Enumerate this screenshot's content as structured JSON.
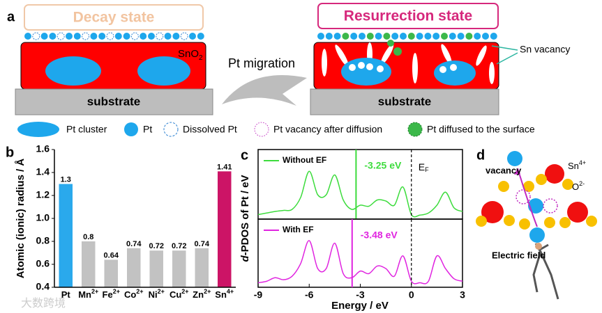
{
  "panel_a": {
    "label": "a",
    "decay_title": "Decay state",
    "resurrection_title": "Resurrection state",
    "oxide": {
      "base": "SnO",
      "sub": "2"
    },
    "substrate_left": "substrate",
    "substrate_right": "substrate",
    "arrow_label": "Pt migration",
    "vacancy_label": "Sn vacancy",
    "legend": [
      "Pt cluster",
      "Pt",
      "Dissolved Pt",
      "Pt vacancy after diffusion",
      "Pt diffused to the surface"
    ]
  },
  "chart_data": [
    {
      "type": "bar",
      "panel_label": "b",
      "ylabel": "Atomic (ionic) radius / Å",
      "categories": [
        {
          "element": "Pt"
        },
        {
          "element": "Mn",
          "charge": "2+"
        },
        {
          "element": "Fe",
          "charge": "2+"
        },
        {
          "element": "Co",
          "charge": "2+"
        },
        {
          "element": "Ni",
          "charge": "2+"
        },
        {
          "element": "Cu",
          "charge": "2+"
        },
        {
          "element": "Zn",
          "charge": "2+"
        },
        {
          "element": "Sn",
          "charge": "4+"
        }
      ],
      "values": [
        1.3,
        0.8,
        0.64,
        0.74,
        0.72,
        0.72,
        0.74,
        1.41
      ],
      "colors": [
        "#2aa9ec",
        "#c2c2c2",
        "#c2c2c2",
        "#c2c2c2",
        "#c2c2c2",
        "#c2c2c2",
        "#c2c2c2",
        "#cc1466"
      ],
      "ylim": [
        0.4,
        1.6
      ],
      "yticks": [
        0.4,
        0.6,
        0.8,
        {
          "value": 1,
          "label": "1.0"
        },
        1.2,
        1.4,
        1.6
      ]
    },
    {
      "type": "line",
      "panel_label": "c",
      "ylabel": {
        "italic": "d",
        "rest": "-PDOS of Pt / eV"
      },
      "x": [
        -9,
        -8.5,
        -8,
        -7.5,
        -7,
        -6.5,
        -6,
        -5.5,
        -5,
        -4.5,
        -4,
        -3.5,
        -3,
        -2.5,
        -2,
        -1.5,
        -1,
        -0.5,
        0,
        0.5,
        1,
        1.5,
        2,
        2.5,
        3
      ],
      "series": [
        {
          "name": "Without EF",
          "color": "#3ddc3d",
          "values": [
            0.02,
            0.05,
            0.08,
            0.1,
            0.12,
            0.35,
            0.85,
            0.4,
            0.4,
            0.78,
            0.3,
            0.12,
            0.2,
            0.18,
            0.3,
            0.28,
            0.2,
            0.55,
            0.02,
            0.01,
            0.05,
            0.2,
            0.45,
            0.15,
            0.08
          ]
        }
      ],
      "xlim": [
        -9,
        3
      ],
      "ylim": [
        0,
        1
      ],
      "d_band_center": -3.25,
      "d_band_center_label": "-3.25 eV",
      "fermi_level": 0,
      "fermi_label": {
        "base": "E",
        "sub": "F"
      }
    },
    {
      "type": "line",
      "x": [
        -9,
        -8.5,
        -8,
        -7.5,
        -7,
        -6.5,
        -6,
        -5.5,
        -5,
        -4.5,
        -4,
        -3.5,
        -3,
        -2.5,
        -2,
        -1.5,
        -1,
        -0.5,
        0,
        0.5,
        1,
        1.5,
        2,
        2.5,
        3
      ],
      "series": [
        {
          "name": "With EF",
          "color": "#e024e0",
          "values": [
            0.02,
            0.05,
            0.12,
            0.08,
            0.15,
            0.4,
            0.85,
            0.3,
            0.3,
            0.8,
            0.2,
            0.12,
            0.25,
            0.2,
            0.35,
            0.3,
            0.15,
            0.55,
            0.05,
            0.02,
            0.05,
            0.55,
            0.3,
            0.1,
            0.05
          ]
        }
      ],
      "xlim": [
        -9,
        3
      ],
      "ylim": [
        0,
        1
      ],
      "xticks": [
        -9,
        -6,
        -3,
        0,
        3
      ],
      "xlabel": "Energy / eV",
      "d_band_center": -3.48,
      "d_band_center_label": "-3.48 eV",
      "fermi_level": 0
    }
  ],
  "panel_d": {
    "label": "d",
    "vacancy": "vacancy",
    "cation": {
      "base": "Sn",
      "sup": "4+"
    },
    "anion": {
      "base": "O",
      "sup": "2-"
    },
    "field": "Electric field"
  },
  "watermark": "大数跨境"
}
